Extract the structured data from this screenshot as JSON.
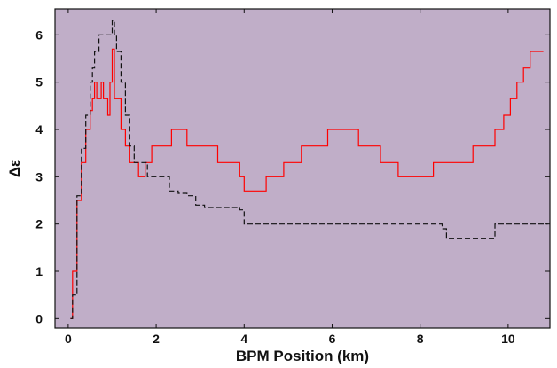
{
  "chart_data": {
    "type": "line",
    "title": "",
    "xlabel": "BPM Position (km)",
    "ylabel": "Δε",
    "xlim": [
      -0.3,
      10.95
    ],
    "ylim": [
      -0.2,
      6.55
    ],
    "xticks": [
      0,
      2,
      4,
      6,
      8,
      10
    ],
    "yticks": [
      0,
      1,
      2,
      3,
      4,
      5,
      6
    ],
    "grid": false,
    "legend": "none",
    "colors": {
      "background": "#c0aec8",
      "frame": "#111111"
    },
    "series": [
      {
        "color": "#ff0000",
        "style": "solid",
        "x": [
          0.05,
          0.1,
          0.2,
          0.3,
          0.4,
          0.5,
          0.55,
          0.6,
          0.65,
          0.75,
          0.8,
          0.85,
          0.9,
          0.95,
          1.0,
          1.05,
          1.1,
          1.2,
          1.3,
          1.4,
          1.5,
          1.6,
          1.75,
          1.9,
          2.1,
          2.35,
          2.5,
          2.7,
          2.8,
          3.0,
          3.2,
          3.4,
          3.6,
          3.8,
          3.9,
          4.0,
          4.1,
          4.3,
          4.5,
          4.7,
          4.9,
          5.0,
          5.3,
          5.6,
          5.9,
          6.2,
          6.6,
          6.9,
          7.1,
          7.3,
          7.5,
          7.8,
          8.1,
          8.3,
          8.6,
          8.9,
          9.2,
          9.5,
          9.7,
          9.9,
          10.05,
          10.2,
          10.35,
          10.5,
          10.6,
          10.8
        ],
        "y": [
          0.0,
          1.0,
          2.5,
          3.3,
          4.0,
          4.4,
          4.65,
          5.0,
          4.65,
          5.0,
          4.65,
          4.65,
          4.3,
          5.0,
          5.7,
          4.65,
          4.65,
          4.0,
          3.65,
          3.3,
          3.3,
          3.0,
          3.3,
          3.65,
          3.65,
          4.0,
          4.0,
          3.65,
          3.65,
          3.65,
          3.65,
          3.3,
          3.3,
          3.3,
          3.0,
          2.7,
          2.7,
          2.7,
          3.0,
          3.0,
          3.3,
          3.3,
          3.65,
          3.65,
          4.0,
          4.0,
          3.65,
          3.65,
          3.3,
          3.3,
          3.0,
          3.0,
          3.0,
          3.3,
          3.3,
          3.3,
          3.65,
          3.65,
          4.0,
          4.3,
          4.65,
          5.0,
          5.3,
          5.65,
          5.65,
          5.65
        ]
      },
      {
        "color": "#111111",
        "style": "dashed",
        "x": [
          0.05,
          0.1,
          0.2,
          0.3,
          0.4,
          0.5,
          0.55,
          0.6,
          0.7,
          0.8,
          0.9,
          0.95,
          1.0,
          1.05,
          1.1,
          1.2,
          1.3,
          1.4,
          1.5,
          1.6,
          1.7,
          1.8,
          1.9,
          2.1,
          2.3,
          2.5,
          2.7,
          2.9,
          3.1,
          3.3,
          3.5,
          3.7,
          3.9,
          4.0,
          4.5,
          5.0,
          6.0,
          7.0,
          8.0,
          8.5,
          8.6,
          8.7,
          9.0,
          9.3,
          9.6,
          9.7,
          10.0,
          10.5,
          10.9
        ],
        "y": [
          0.0,
          0.5,
          2.6,
          3.6,
          4.3,
          5.0,
          5.3,
          5.65,
          6.0,
          6.0,
          6.0,
          6.0,
          6.3,
          6.0,
          5.65,
          5.0,
          4.3,
          3.65,
          3.3,
          3.3,
          3.3,
          3.0,
          3.0,
          3.0,
          2.7,
          2.65,
          2.6,
          2.4,
          2.35,
          2.35,
          2.35,
          2.35,
          2.3,
          2.0,
          2.0,
          2.0,
          2.0,
          2.0,
          2.0,
          1.9,
          1.7,
          1.7,
          1.7,
          1.7,
          1.7,
          2.0,
          2.0,
          2.0,
          2.0
        ]
      }
    ]
  }
}
